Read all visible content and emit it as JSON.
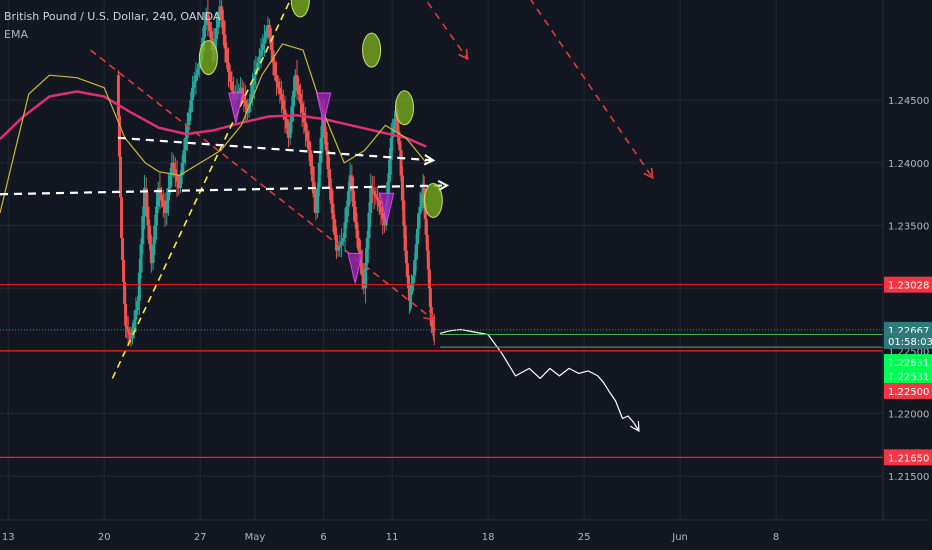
{
  "header": {
    "symbol": "British Pound / U.S. Dollar, 240, OANDA",
    "indicator": "EMA"
  },
  "chart_data": {
    "type": "line",
    "title": "British Pound / U.S. Dollar, 240, OANDA",
    "ylim": [
      1.2115,
      1.253
    ],
    "y_ticks": [
      "1.24500",
      "1.24000",
      "1.23500",
      "1.23000",
      "1.22500",
      "1.22000",
      "1.21500"
    ],
    "y_tick_values": [
      1.245,
      1.24,
      1.235,
      1.23,
      1.225,
      1.22,
      1.215
    ],
    "x_ticks": [
      "13",
      "20",
      "27",
      "May",
      "6",
      "11",
      "18",
      "25",
      "Jun",
      "8"
    ],
    "x_tick_values": [
      0,
      7,
      14,
      18,
      23,
      28,
      35,
      42,
      49,
      56
    ],
    "xlim": [
      -0.6,
      63.8
    ],
    "grid": true,
    "price": {
      "x": [
        8.0,
        8.3,
        8.6,
        9.0,
        9.5,
        10.0,
        10.5,
        11.0,
        11.5,
        12.0,
        12.5,
        13.0,
        13.5,
        14.0,
        14.5,
        15.0,
        15.5,
        16.0,
        16.5,
        17.0,
        17.5,
        18.0,
        18.5,
        19.0,
        19.5,
        20.0,
        20.5,
        21.0,
        21.5,
        22.0,
        22.5,
        23.0,
        23.5,
        24.0,
        24.5,
        25.0,
        25.5,
        26.0,
        26.5,
        27.0,
        27.5,
        28.0,
        28.3,
        28.6,
        29.0,
        29.3,
        29.6,
        30.0,
        30.3,
        30.6,
        30.9,
        31.1
      ],
      "values": [
        1.247,
        1.234,
        1.227,
        1.226,
        1.229,
        1.238,
        1.232,
        1.238,
        1.236,
        1.24,
        1.238,
        1.242,
        1.246,
        1.248,
        1.252,
        1.249,
        1.2525,
        1.248,
        1.245,
        1.246,
        1.244,
        1.247,
        1.249,
        1.251,
        1.247,
        1.245,
        1.242,
        1.247,
        1.244,
        1.241,
        1.236,
        1.244,
        1.238,
        1.233,
        1.234,
        1.239,
        1.234,
        1.23,
        1.238,
        1.237,
        1.235,
        1.242,
        1.244,
        1.241,
        1.233,
        1.229,
        1.231,
        1.236,
        1.238,
        1.233,
        1.227,
        1.22667
      ]
    },
    "ema_pink": {
      "x": [
        -0.6,
        1,
        3,
        5,
        7,
        9,
        11,
        13,
        15,
        17,
        19,
        21,
        23,
        25,
        27,
        29,
        30.5
      ],
      "values": [
        1.2419,
        1.2436,
        1.2453,
        1.2457,
        1.2453,
        1.244,
        1.2428,
        1.2423,
        1.2426,
        1.2432,
        1.2437,
        1.2438,
        1.2435,
        1.243,
        1.2425,
        1.242,
        1.2413
      ]
    },
    "ema_yellow": {
      "x": [
        -0.6,
        0.5,
        1.5,
        3,
        5,
        7,
        8.5,
        10,
        11,
        12.5,
        14,
        15.5,
        17,
        18.5,
        20,
        21.5,
        23,
        24.5,
        26,
        27.5,
        29,
        30.5
      ],
      "values": [
        1.236,
        1.241,
        1.2455,
        1.247,
        1.2468,
        1.246,
        1.242,
        1.24,
        1.2393,
        1.239,
        1.24,
        1.241,
        1.243,
        1.247,
        1.2495,
        1.249,
        1.244,
        1.24,
        1.241,
        1.243,
        1.242,
        1.24
      ]
    },
    "horizontal_levels": [
      1.23028,
      1.225,
      1.2165
    ],
    "trendlines": [
      {
        "from": [
          7.6,
          1.2228
        ],
        "to": [
          21.0,
          1.254
        ]
      },
      {
        "from": [
          6.0,
          1.249
        ],
        "to": [
          31.0,
          1.2275
        ]
      }
    ],
    "projection_arrows": [
      {
        "from": [
          29.5,
          1.2545
        ],
        "to": [
          33.5,
          1.2483
        ]
      },
      {
        "from": [
          37.5,
          1.254
        ],
        "to": [
          47.0,
          1.2388
        ]
      }
    ],
    "white_arrows": [
      {
        "from": [
          8.0,
          1.242
        ],
        "to": [
          31.0,
          1.2402
        ]
      },
      {
        "from": [
          -0.6,
          1.2375
        ],
        "to": [
          32.0,
          1.2382
        ]
      }
    ],
    "forecast_path": {
      "x": [
        31.5,
        32.2,
        33.0,
        34.0,
        35.0,
        36.0,
        37.0,
        38.0,
        38.8,
        39.5,
        40.2,
        40.9,
        41.6,
        42.3,
        43.0,
        43.4,
        43.8,
        44.3,
        44.8,
        45.2,
        45.6,
        46.0
      ],
      "values": [
        1.2264,
        1.2266,
        1.2267,
        1.2265,
        1.2263,
        1.2248,
        1.223,
        1.2236,
        1.2228,
        1.2236,
        1.223,
        1.2236,
        1.2232,
        1.2234,
        1.223,
        1.2225,
        1.2218,
        1.221,
        1.2196,
        1.2198,
        1.2193,
        1.2186
      ]
    },
    "price_tags": [
      {
        "label": "1.23028",
        "value": 1.23028,
        "color": "#f23645"
      },
      {
        "label": "1.22667",
        "value": 1.22667,
        "color": "#2e7a7a"
      },
      {
        "label": "01:58:03",
        "value": 1.2258,
        "color": "#2e7a7a"
      },
      {
        "label": "1.22631",
        "value": 1.2241,
        "color": "#00ff55"
      },
      {
        "label": "1.22531",
        "value": 1.223,
        "color": "#00ff55"
      },
      {
        "label": "1.22500",
        "value": 1.2218,
        "color": "#f23645"
      },
      {
        "label": "1.21650",
        "value": 1.2165,
        "color": "#f23645"
      }
    ],
    "markers_circle": [
      [
        14.6,
        1.2484
      ],
      [
        21.3,
        1.253
      ],
      [
        26.5,
        1.249
      ],
      [
        28.9,
        1.2444
      ],
      [
        31.0,
        1.237
      ]
    ],
    "markers_triangle": [
      [
        16.6,
        1.2443
      ],
      [
        23.0,
        1.2443
      ],
      [
        25.3,
        1.2315
      ],
      [
        27.6,
        1.2363
      ]
    ],
    "colors": {
      "background": "#131722",
      "grid": "#232835",
      "level": "#ff1e1e",
      "trend_yellow": "#ffeb3b",
      "trend_red": "#e23b3b",
      "ema_pink": "#e0306f",
      "ema_yellow": "#c9b93a",
      "candle_up": "#26a69a",
      "candle_down": "#ef5350",
      "marker_green": "#7db51e",
      "marker_purple": "#9c27b0",
      "price_line": "#2e8b8b",
      "order_line": "#4caf50"
    }
  }
}
